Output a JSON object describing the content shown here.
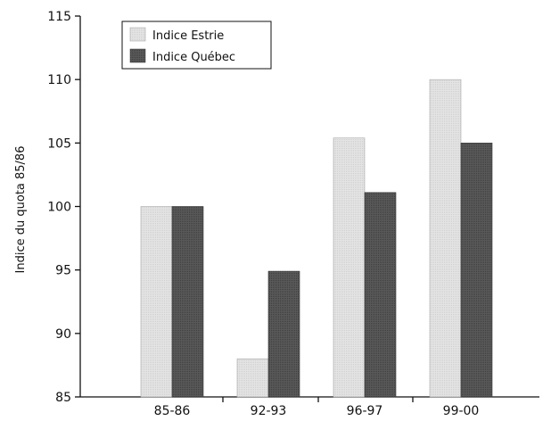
{
  "chart_data": {
    "type": "bar",
    "categories": [
      "85-86",
      "92-93",
      "96-97",
      "99-00"
    ],
    "series": [
      {
        "name": "Indice Estrie",
        "values": [
          100,
          88,
          105.4,
          110
        ],
        "color": "#e2e2e2"
      },
      {
        "name": "Indice Québec",
        "values": [
          100,
          94.9,
          101.1,
          105
        ],
        "color": "#555555"
      }
    ],
    "xlabel": "",
    "ylabel": "Indice du quota 85/86",
    "ylim": [
      85,
      115
    ],
    "yticks": [
      85,
      90,
      95,
      100,
      105,
      110,
      115
    ],
    "grid": false,
    "legend_position": "top-left"
  }
}
